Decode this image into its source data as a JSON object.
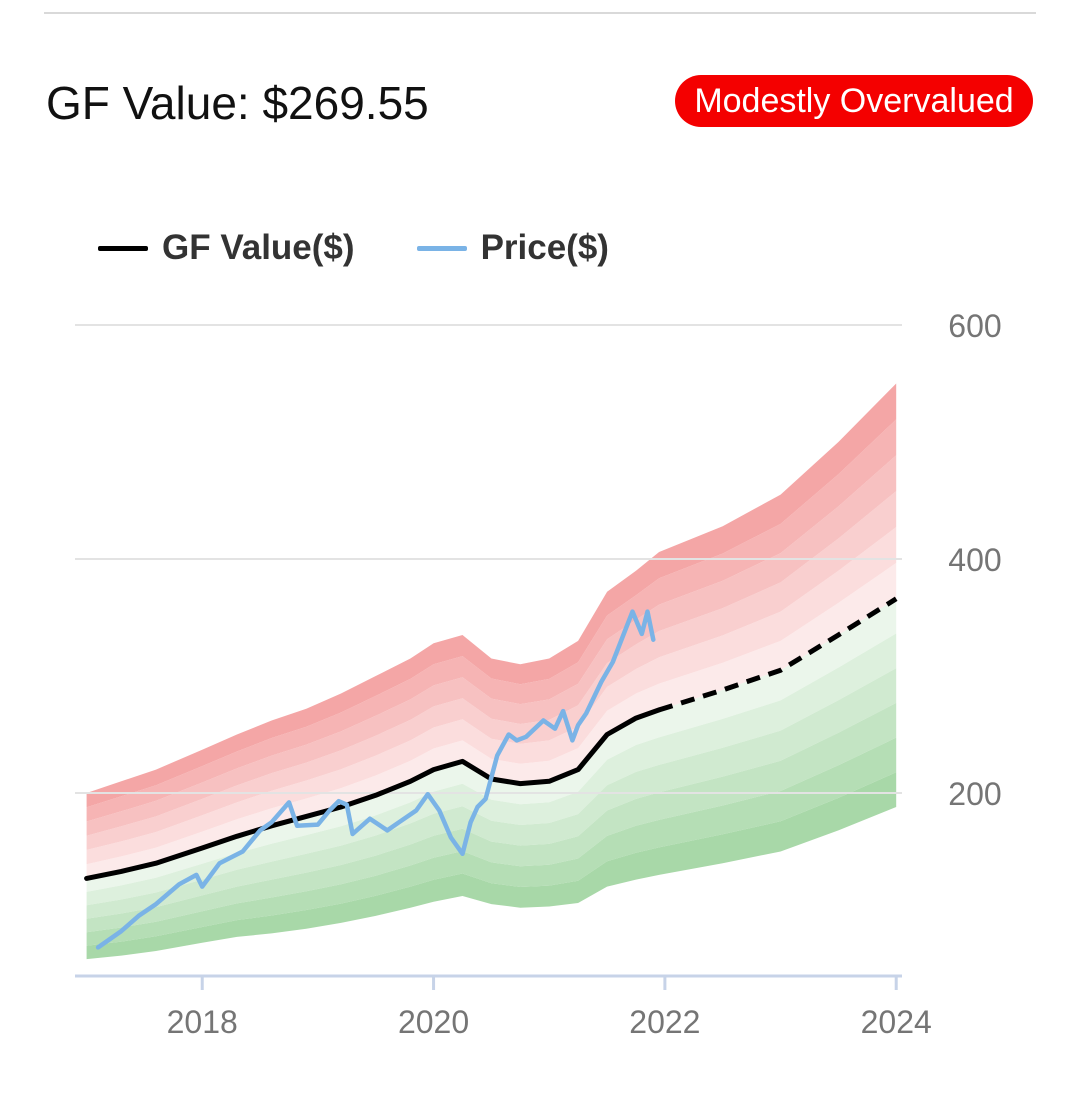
{
  "header": {
    "gf_value_text": "GF Value: $269.55",
    "status_badge": "Modestly Overvalued"
  },
  "colors": {
    "badge": "#f40000",
    "gf_value_line": "#000000",
    "price_line": "#7ab3e6",
    "overvalued_band": "#f4a6a6",
    "undervalued_band": "#a8d8a8",
    "gridline": "#e3e3e3",
    "axis": "#c7d3e8"
  },
  "chart_data": {
    "type": "line",
    "legend": [
      {
        "name": "GF Value($)",
        "color": "#000000"
      },
      {
        "name": "Price($)",
        "color": "#7ab3e6"
      }
    ],
    "legend_position": "top-left",
    "grid": true,
    "xlim": [
      2016.9,
      2024.05
    ],
    "ylim": [
      0,
      600
    ],
    "x_ticks": [
      2018,
      2020,
      2022,
      2024
    ],
    "x_tick_labels": [
      "2018",
      "2020",
      "2022",
      "2024"
    ],
    "y_ticks": [
      200,
      400,
      600
    ],
    "y_tick_labels": [
      "200",
      "400",
      "600"
    ],
    "y_axis_side": "right",
    "series": [
      {
        "name": "GF Value($)",
        "style": "solid",
        "x": [
          2017.0,
          2017.3,
          2017.6,
          2018.0,
          2018.3,
          2018.6,
          2018.9,
          2019.2,
          2019.5,
          2019.8,
          2020.0,
          2020.25,
          2020.5,
          2020.75,
          2021.0,
          2021.25,
          2021.5,
          2021.75,
          2021.95
        ],
        "values": [
          127,
          133,
          140,
          153,
          163,
          172,
          180,
          188,
          198,
          210,
          220,
          227,
          212,
          208,
          210,
          220,
          250,
          264,
          271
        ]
      },
      {
        "name": "GF Value($) estimate",
        "style": "dashed",
        "x": [
          2021.95,
          2022.5,
          2023.0,
          2023.5,
          2024.0
        ],
        "values": [
          271,
          288,
          305,
          335,
          366
        ]
      },
      {
        "name": "Price($)",
        "x": [
          2017.1,
          2017.3,
          2017.45,
          2017.6,
          2017.8,
          2017.95,
          2018.0,
          2018.15,
          2018.25,
          2018.35,
          2018.5,
          2018.6,
          2018.75,
          2018.82,
          2019.0,
          2019.1,
          2019.18,
          2019.25,
          2019.3,
          2019.45,
          2019.6,
          2019.7,
          2019.85,
          2019.95,
          2020.05,
          2020.15,
          2020.25,
          2020.32,
          2020.38,
          2020.45,
          2020.55,
          2020.65,
          2020.72,
          2020.8,
          2020.95,
          2021.05,
          2021.12,
          2021.2,
          2021.25,
          2021.32,
          2021.45,
          2021.55,
          2021.72,
          2021.8,
          2021.85,
          2021.9
        ],
        "values": [
          68,
          82,
          95,
          105,
          122,
          130,
          120,
          140,
          145,
          150,
          168,
          175,
          192,
          172,
          173,
          185,
          193,
          190,
          165,
          178,
          168,
          175,
          185,
          199,
          185,
          162,
          148,
          175,
          188,
          195,
          232,
          250,
          245,
          248,
          262,
          255,
          270,
          245,
          258,
          268,
          295,
          312,
          355,
          336,
          355,
          331
        ]
      }
    ],
    "bands": [
      {
        "name": "overvalued",
        "upper": [
          200,
          210,
          220,
          237,
          250,
          262,
          272,
          285,
          300,
          315,
          328,
          335,
          315,
          310,
          315,
          330,
          372,
          390,
          406,
          428,
          455,
          500,
          550
        ],
        "x": [
          2017.0,
          2017.3,
          2017.6,
          2018.0,
          2018.3,
          2018.6,
          2018.9,
          2019.2,
          2019.5,
          2019.8,
          2020.0,
          2020.25,
          2020.5,
          2020.75,
          2021.0,
          2021.25,
          2021.5,
          2021.75,
          2021.95,
          2022.5,
          2023.0,
          2023.5,
          2024.0
        ]
      },
      {
        "name": "undervalued",
        "lower": [
          58,
          61,
          65,
          72,
          77,
          80,
          84,
          89,
          95,
          102,
          107,
          112,
          105,
          102,
          103,
          106,
          120,
          126,
          130,
          140,
          150,
          168,
          188
        ],
        "x": [
          2017.0,
          2017.3,
          2017.6,
          2018.0,
          2018.3,
          2018.6,
          2018.9,
          2019.2,
          2019.5,
          2019.8,
          2020.0,
          2020.25,
          2020.5,
          2020.75,
          2021.0,
          2021.25,
          2021.5,
          2021.75,
          2021.95,
          2022.5,
          2023.0,
          2023.5,
          2024.0
        ]
      }
    ]
  }
}
